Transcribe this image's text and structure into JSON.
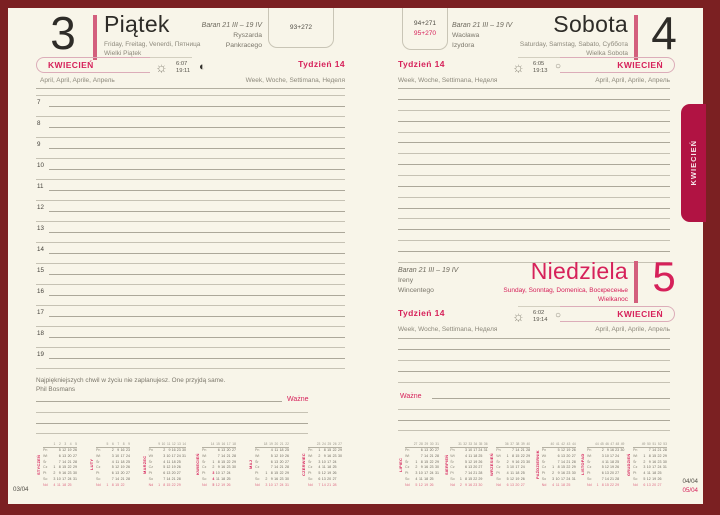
{
  "colors": {
    "accent": "#d6215a",
    "tab_bg": "#b11343",
    "cover": "#7b2022",
    "nd_pink": "#dd6b85",
    "bar_pink": "#d35f7d"
  },
  "tab": {
    "label": "KWIECIEŃ"
  },
  "icons": {
    "sun": "☼",
    "moon_friday": "◐",
    "moon_weekend": "○"
  },
  "left_page": {
    "day_number": "3",
    "day_name": "Piątek",
    "day_translations": "Friday, Freitag, Venerdi, Пятница",
    "holiday": "Wielki Piątek",
    "zodiac": "Baran 21 III – 19 IV",
    "name_day_1": "Ryszarda",
    "name_day_2": "Pankracego",
    "day_of_year": "93+272",
    "month_label": "KWIECIEŃ",
    "month_translations": "April, April, Aprile, Апрель",
    "week_label": "Tydzień 14",
    "week_translations": "Week, Woche, Settimana, Неделя",
    "sunrise": "6:07",
    "sunset": "19:11",
    "hours": [
      "7",
      "8",
      "9",
      "10",
      "11",
      "12",
      "13",
      "14",
      "15",
      "16",
      "17",
      "18",
      "19"
    ],
    "quote": "Najpiękniejszych chwil w życiu nie zaplanujesz. One przyjdą same.",
    "quote_author": "Phil Bosmans",
    "important_label": "Ważne",
    "extra_line_count": 3,
    "page_footer": "03/04"
  },
  "right_page": {
    "saturday": {
      "day_number": "4",
      "day_name": "Sobota",
      "day_translations": "Saturday, Samstag, Sabato, Суббота",
      "holiday": "Wielka Sobota",
      "zodiac": "Baran 21 III – 19 IV",
      "name_day_1": "Wacława",
      "name_day_2": "Izydora",
      "day_of_year_1": "94+271",
      "day_of_year_2": "95+270",
      "month_label": "KWIECIEŃ",
      "month_translations": "April, April, Aprile, Апрель",
      "week_label": "Tydzień 14",
      "week_translations": "Week, Woche, Settimana, Неделя",
      "sunrise": "6:05",
      "sunset": "19:13",
      "line_count": 16
    },
    "sunday": {
      "day_number": "5",
      "day_name": "Niedziela",
      "day_translations": "Sunday, Sonntag, Domenica, Воскресенье",
      "holiday": "Wielkanoc",
      "zodiac": "Baran 21 III – 19 IV",
      "name_day_1": "Ireny",
      "name_day_2": "Wincentego",
      "month_label": "KWIECIEŃ",
      "month_translations": "April, April, Aprile, Апрель",
      "week_label": "Tydzień 14",
      "week_translations": "Week, Woche, Settimana, Неделя",
      "sunrise": "6:02",
      "sunset": "19:14",
      "lines_before": 4,
      "important_label": "Ważne",
      "lines_after": 3
    },
    "page_footer_1": "04/04",
    "page_footer_2": "05/04"
  },
  "mini_calendars": {
    "weekday_labels": [
      "Pn",
      "Wt",
      "Śr",
      "Cz",
      "Pt",
      "So",
      "Nd"
    ],
    "highlight_month_index": 3,
    "highlight_days": [
      "3",
      "4",
      "5"
    ],
    "months": [
      {
        "name": "STYCZEŃ",
        "weeks": [
          "1",
          "2",
          "3",
          "4",
          "5"
        ],
        "rows": [
          [
            "",
            "5",
            "12",
            "19",
            "26"
          ],
          [
            "",
            "6",
            "13",
            "20",
            "27"
          ],
          [
            "",
            "7",
            "14",
            "21",
            "28"
          ],
          [
            "1",
            "8",
            "15",
            "22",
            "29"
          ],
          [
            "2",
            "9",
            "16",
            "23",
            "30"
          ],
          [
            "3",
            "10",
            "17",
            "24",
            "31"
          ],
          [
            "4",
            "11",
            "18",
            "25",
            ""
          ]
        ]
      },
      {
        "name": "LUTY",
        "weeks": [
          "5",
          "6",
          "7",
          "8",
          "9"
        ],
        "rows": [
          [
            "",
            "2",
            "9",
            "16",
            "23"
          ],
          [
            "",
            "3",
            "10",
            "17",
            "24"
          ],
          [
            "",
            "4",
            "11",
            "18",
            "25"
          ],
          [
            "",
            "5",
            "12",
            "19",
            "26"
          ],
          [
            "",
            "6",
            "13",
            "20",
            "27"
          ],
          [
            "",
            "7",
            "14",
            "21",
            "28"
          ],
          [
            "1",
            "8",
            "15",
            "22",
            ""
          ]
        ]
      },
      {
        "name": "MARZEC",
        "weeks": [
          "9",
          "10",
          "11",
          "12",
          "13",
          "14"
        ],
        "rows": [
          [
            "",
            "2",
            "9",
            "16",
            "23",
            "30"
          ],
          [
            "",
            "3",
            "10",
            "17",
            "24",
            "31"
          ],
          [
            "",
            "4",
            "11",
            "18",
            "25",
            ""
          ],
          [
            "",
            "5",
            "12",
            "19",
            "26",
            ""
          ],
          [
            "",
            "6",
            "13",
            "20",
            "27",
            ""
          ],
          [
            "",
            "7",
            "14",
            "21",
            "28",
            ""
          ],
          [
            "1",
            "8",
            "15",
            "22",
            "29",
            ""
          ]
        ]
      },
      {
        "name": "KWIECIEŃ",
        "weeks": [
          "14",
          "15",
          "16",
          "17",
          "18"
        ],
        "rows": [
          [
            "",
            "6",
            "13",
            "20",
            "27"
          ],
          [
            "",
            "7",
            "14",
            "21",
            "28"
          ],
          [
            "1",
            "8",
            "15",
            "22",
            "29"
          ],
          [
            "2",
            "9",
            "16",
            "23",
            "30"
          ],
          [
            "3",
            "10",
            "17",
            "24",
            ""
          ],
          [
            "4",
            "11",
            "18",
            "25",
            ""
          ],
          [
            "5",
            "12",
            "19",
            "26",
            ""
          ]
        ]
      },
      {
        "name": "MAJ",
        "weeks": [
          "18",
          "19",
          "20",
          "21",
          "22"
        ],
        "rows": [
          [
            "",
            "4",
            "11",
            "18",
            "25"
          ],
          [
            "",
            "5",
            "12",
            "19",
            "26"
          ],
          [
            "",
            "6",
            "13",
            "20",
            "27"
          ],
          [
            "",
            "7",
            "14",
            "21",
            "28"
          ],
          [
            "1",
            "8",
            "15",
            "22",
            "29"
          ],
          [
            "2",
            "9",
            "16",
            "23",
            "30"
          ],
          [
            "3",
            "10",
            "17",
            "24",
            "31"
          ]
        ]
      },
      {
        "name": "CZERWIEC",
        "weeks": [
          "23",
          "24",
          "25",
          "26",
          "27"
        ],
        "rows": [
          [
            "1",
            "8",
            "15",
            "22",
            "29"
          ],
          [
            "2",
            "9",
            "16",
            "23",
            "30"
          ],
          [
            "3",
            "10",
            "17",
            "24",
            ""
          ],
          [
            "4",
            "11",
            "18",
            "25",
            ""
          ],
          [
            "5",
            "12",
            "19",
            "26",
            ""
          ],
          [
            "6",
            "13",
            "20",
            "27",
            ""
          ],
          [
            "7",
            "14",
            "21",
            "28",
            ""
          ]
        ]
      },
      {
        "name": "LIPIEC",
        "weeks": [
          "27",
          "28",
          "29",
          "30",
          "31"
        ],
        "rows": [
          [
            "",
            "6",
            "13",
            "20",
            "27"
          ],
          [
            "",
            "7",
            "14",
            "21",
            "28"
          ],
          [
            "1",
            "8",
            "15",
            "22",
            "29"
          ],
          [
            "2",
            "9",
            "16",
            "23",
            "30"
          ],
          [
            "3",
            "10",
            "17",
            "24",
            "31"
          ],
          [
            "4",
            "11",
            "18",
            "25",
            ""
          ],
          [
            "5",
            "12",
            "19",
            "26",
            ""
          ]
        ]
      },
      {
        "name": "SIERPIEŃ",
        "weeks": [
          "31",
          "32",
          "33",
          "34",
          "35",
          "36"
        ],
        "rows": [
          [
            "",
            "3",
            "10",
            "17",
            "24",
            "31"
          ],
          [
            "",
            "4",
            "11",
            "18",
            "25",
            ""
          ],
          [
            "",
            "5",
            "12",
            "19",
            "26",
            ""
          ],
          [
            "",
            "6",
            "13",
            "20",
            "27",
            ""
          ],
          [
            "",
            "7",
            "14",
            "21",
            "28",
            ""
          ],
          [
            "1",
            "8",
            "15",
            "22",
            "29",
            ""
          ],
          [
            "2",
            "9",
            "16",
            "23",
            "30",
            ""
          ]
        ]
      },
      {
        "name": "WRZESIEŃ",
        "weeks": [
          "36",
          "37",
          "38",
          "39",
          "40"
        ],
        "rows": [
          [
            "",
            "7",
            "14",
            "21",
            "28"
          ],
          [
            "1",
            "8",
            "15",
            "22",
            "29"
          ],
          [
            "2",
            "9",
            "16",
            "23",
            "30"
          ],
          [
            "3",
            "10",
            "17",
            "24",
            ""
          ],
          [
            "4",
            "11",
            "18",
            "25",
            ""
          ],
          [
            "5",
            "12",
            "19",
            "26",
            ""
          ],
          [
            "6",
            "13",
            "20",
            "27",
            ""
          ]
        ]
      },
      {
        "name": "PAŹDZIERNIK",
        "weeks": [
          "40",
          "41",
          "42",
          "43",
          "44"
        ],
        "rows": [
          [
            "",
            "5",
            "12",
            "19",
            "26"
          ],
          [
            "",
            "6",
            "13",
            "20",
            "27"
          ],
          [
            "",
            "7",
            "14",
            "21",
            "28"
          ],
          [
            "1",
            "8",
            "15",
            "22",
            "29"
          ],
          [
            "2",
            "9",
            "16",
            "23",
            "30"
          ],
          [
            "3",
            "10",
            "17",
            "24",
            "31"
          ],
          [
            "4",
            "11",
            "18",
            "25",
            ""
          ]
        ]
      },
      {
        "name": "LISTOPAD",
        "weeks": [
          "44",
          "45",
          "46",
          "47",
          "48",
          "49"
        ],
        "rows": [
          [
            "",
            "2",
            "9",
            "16",
            "23",
            "30"
          ],
          [
            "",
            "3",
            "10",
            "17",
            "24",
            ""
          ],
          [
            "",
            "4",
            "11",
            "18",
            "25",
            ""
          ],
          [
            "",
            "5",
            "12",
            "19",
            "26",
            ""
          ],
          [
            "",
            "6",
            "13",
            "20",
            "27",
            ""
          ],
          [
            "",
            "7",
            "14",
            "21",
            "28",
            ""
          ],
          [
            "1",
            "8",
            "15",
            "22",
            "29",
            ""
          ]
        ]
      },
      {
        "name": "GRUDZIEŃ",
        "weeks": [
          "49",
          "50",
          "51",
          "52",
          "53"
        ],
        "rows": [
          [
            "",
            "7",
            "14",
            "21",
            "28"
          ],
          [
            "1",
            "8",
            "15",
            "22",
            "29"
          ],
          [
            "2",
            "9",
            "16",
            "23",
            "30"
          ],
          [
            "3",
            "10",
            "17",
            "24",
            "31"
          ],
          [
            "4",
            "11",
            "18",
            "25",
            ""
          ],
          [
            "5",
            "12",
            "19",
            "26",
            ""
          ],
          [
            "6",
            "13",
            "20",
            "27",
            ""
          ]
        ]
      }
    ]
  }
}
